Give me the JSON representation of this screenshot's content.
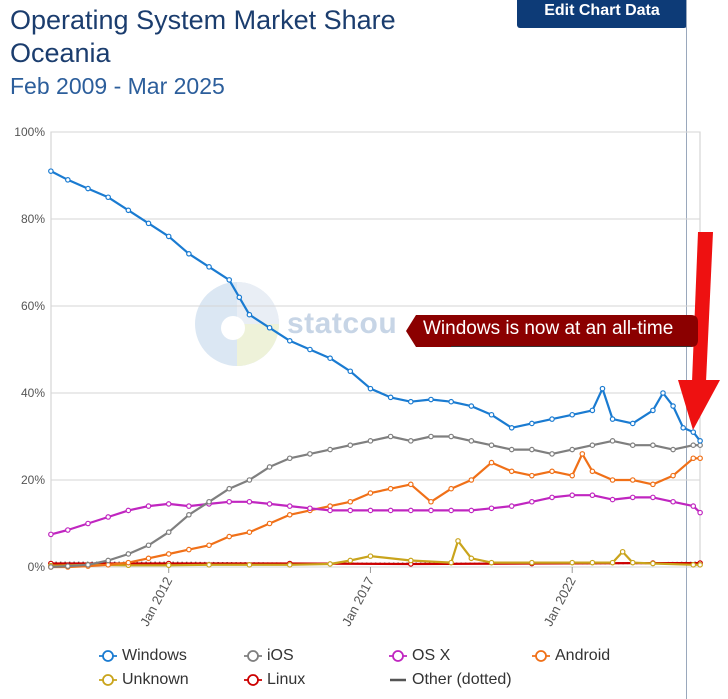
{
  "header": {
    "title": "Operating System Market Share Oceania",
    "subtitle": "Feb 2009 - Mar 2025",
    "edit_button": "Edit Chart Data"
  },
  "watermark": {
    "text": "statcou"
  },
  "annotation": {
    "text": "Windows is now at an all-time",
    "color": "#8b0000",
    "arrow_color": "#ee1111"
  },
  "chart_data": {
    "type": "line",
    "title": "Operating System Market Share Oceania",
    "subtitle": "Feb 2009 - Mar 2025",
    "x_tick_labels": [
      "Jan 2012",
      "Jan 2017",
      "Jan 2022"
    ],
    "y_tick_labels": [
      "0%",
      "20%",
      "40%",
      "60%",
      "80%",
      "100%"
    ],
    "ylim": [
      0,
      100
    ],
    "xlim": [
      2009.083,
      2025.167
    ],
    "grid": true,
    "legend_position": "bottom",
    "series": [
      {
        "name": "Windows",
        "color": "#1a7bd1",
        "marker": "open-circle",
        "x": [
          2009.08,
          2009.5,
          2010.0,
          2010.5,
          2011.0,
          2011.5,
          2012.0,
          2012.5,
          2013.0,
          2013.5,
          2013.75,
          2014.0,
          2014.5,
          2015.0,
          2015.5,
          2016.0,
          2016.5,
          2017.0,
          2017.5,
          2018.0,
          2018.5,
          2019.0,
          2019.5,
          2020.0,
          2020.5,
          2021.0,
          2021.5,
          2022.0,
          2022.5,
          2022.75,
          2023.0,
          2023.5,
          2024.0,
          2024.25,
          2024.5,
          2024.75,
          2025.0,
          2025.17
        ],
        "y": [
          91,
          89,
          87,
          85,
          82,
          79,
          76,
          72,
          69,
          66,
          62,
          58,
          55,
          52,
          50,
          48,
          45,
          41,
          39,
          38,
          38.5,
          38,
          37,
          35,
          32,
          33,
          34,
          35,
          36,
          41,
          34,
          33,
          36,
          40,
          37,
          32,
          31,
          29
        ]
      },
      {
        "name": "iOS",
        "color": "#7f7f7f",
        "marker": "open-circle",
        "x": [
          2009.08,
          2009.5,
          2010.0,
          2010.5,
          2011.0,
          2011.5,
          2012.0,
          2012.5,
          2013.0,
          2013.5,
          2014.0,
          2014.5,
          2015.0,
          2015.5,
          2016.0,
          2016.5,
          2017.0,
          2017.5,
          2018.0,
          2018.5,
          2019.0,
          2019.5,
          2020.0,
          2020.5,
          2021.0,
          2021.5,
          2022.0,
          2022.5,
          2023.0,
          2023.5,
          2024.0,
          2024.5,
          2025.0,
          2025.17
        ],
        "y": [
          0,
          0.2,
          0.5,
          1.5,
          3,
          5,
          8,
          12,
          15,
          18,
          20,
          23,
          25,
          26,
          27,
          28,
          29,
          30,
          29,
          30,
          30,
          29,
          28,
          27,
          27,
          26,
          27,
          28,
          29,
          28,
          28,
          27,
          28,
          28
        ]
      },
      {
        "name": "OS X",
        "color": "#c026c0",
        "marker": "open-circle",
        "x": [
          2009.08,
          2009.5,
          2010.0,
          2010.5,
          2011.0,
          2011.5,
          2012.0,
          2012.5,
          2013.0,
          2013.5,
          2014.0,
          2014.5,
          2015.0,
          2015.5,
          2016.0,
          2016.5,
          2017.0,
          2017.5,
          2018.0,
          2018.5,
          2019.0,
          2019.5,
          2020.0,
          2020.5,
          2021.0,
          2021.5,
          2022.0,
          2022.5,
          2023.0,
          2023.5,
          2024.0,
          2024.5,
          2025.0,
          2025.17
        ],
        "y": [
          7.5,
          8.5,
          10,
          11.5,
          13,
          14,
          14.5,
          14,
          14.5,
          15,
          15,
          14.5,
          14,
          13.5,
          13,
          13,
          13,
          13,
          13,
          13,
          13,
          13,
          13.5,
          14,
          15,
          16,
          16.5,
          16.5,
          15.5,
          16,
          16,
          15,
          14,
          12.5
        ]
      },
      {
        "name": "Android",
        "color": "#f07018",
        "marker": "open-circle",
        "x": [
          2009.08,
          2009.5,
          2010.0,
          2010.5,
          2011.0,
          2011.5,
          2012.0,
          2012.5,
          2013.0,
          2013.5,
          2014.0,
          2014.5,
          2015.0,
          2015.5,
          2016.0,
          2016.5,
          2017.0,
          2017.5,
          2018.0,
          2018.5,
          2019.0,
          2019.5,
          2020.0,
          2020.5,
          2021.0,
          2021.5,
          2022.0,
          2022.25,
          2022.5,
          2023.0,
          2023.5,
          2024.0,
          2024.5,
          2025.0,
          2025.17
        ],
        "y": [
          0,
          0,
          0.2,
          0.5,
          1,
          2,
          3,
          4,
          5,
          7,
          8,
          10,
          12,
          13,
          14,
          15,
          17,
          18,
          19,
          15,
          18,
          20,
          24,
          22,
          21,
          22,
          21,
          26,
          22,
          20,
          20,
          19,
          21,
          25,
          25
        ]
      },
      {
        "name": "Unknown",
        "color": "#c9a41c",
        "marker": "open-circle",
        "x": [
          2009.08,
          2010.0,
          2011.0,
          2012.0,
          2013.0,
          2014.0,
          2015.0,
          2016.0,
          2016.5,
          2017.0,
          2018.0,
          2019.0,
          2019.17,
          2019.5,
          2020.0,
          2021.0,
          2022.0,
          2022.5,
          2023.0,
          2023.25,
          2023.5,
          2024.0,
          2025.0,
          2025.17
        ],
        "y": [
          0.3,
          0.5,
          0.4,
          0.4,
          0.5,
          0.5,
          0.5,
          0.7,
          1.5,
          2.5,
          1.5,
          1,
          6,
          2,
          1,
          1,
          1,
          1,
          1,
          3.5,
          1,
          0.8,
          0.5,
          0.5
        ]
      },
      {
        "name": "Linux",
        "color": "#cc0000",
        "marker": "open-circle",
        "x": [
          2009.08,
          2012.0,
          2015.0,
          2018.0,
          2021.0,
          2024.0,
          2025.17
        ],
        "y": [
          0.8,
          0.8,
          0.8,
          0.7,
          0.8,
          0.9,
          0.9
        ]
      },
      {
        "name": "Other (dotted)",
        "color": "#555555",
        "marker": "dotted",
        "x": [
          2009.08,
          2012.0,
          2015.0,
          2018.0,
          2021.0,
          2024.0,
          2025.17
        ],
        "y": [
          1.0,
          1.0,
          0.8,
          0.8,
          0.8,
          0.9,
          1.0
        ]
      }
    ]
  }
}
